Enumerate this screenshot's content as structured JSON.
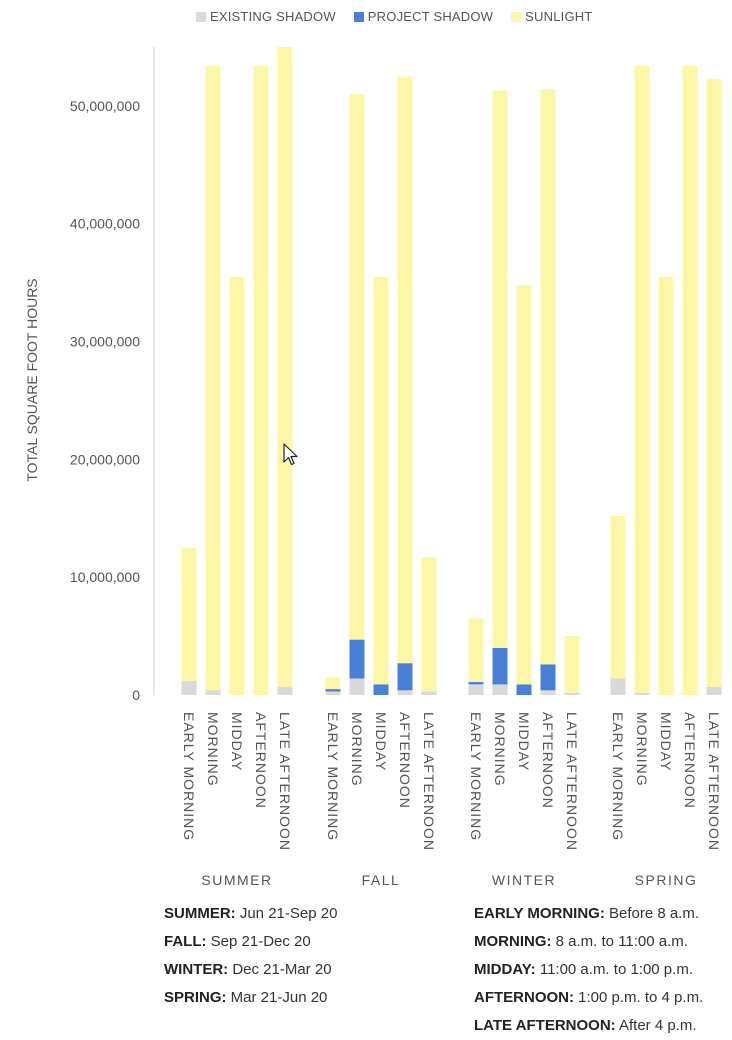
{
  "legend": [
    {
      "name": "EXISTING SHADOW",
      "color": "#d9d9d9"
    },
    {
      "name": "PROJECT SHADOW",
      "color": "#4a7fd8"
    },
    {
      "name": "SUNLIGHT",
      "color": "#fbf7a6"
    }
  ],
  "chart_data": {
    "type": "bar",
    "stacked": true,
    "ylabel": "TOTAL SQUARE FOOT HOURS",
    "ylim": [
      0,
      55000000
    ],
    "yticks": [
      "0",
      "10,000,000",
      "20,000,000",
      "30,000,000",
      "40,000,000",
      "50,000,000"
    ],
    "ytick_values": [
      0,
      10000000,
      20000000,
      30000000,
      40000000,
      50000000
    ],
    "grid": false,
    "legend_position": "top",
    "groups": [
      "SUMMER",
      "FALL",
      "WINTER",
      "SPRING"
    ],
    "categories": [
      "EARLY MORNING",
      "MORNING",
      "MIDDAY",
      "AFTERNOON",
      "LATE AFTERNOON"
    ],
    "series": [
      {
        "name": "EXISTING SHADOW",
        "color": "#d9d9d9",
        "values": [
          [
            1200000,
            400000,
            0,
            0,
            700000
          ],
          [
            300000,
            1400000,
            0,
            400000,
            300000
          ],
          [
            900000,
            900000,
            0,
            400000,
            200000
          ],
          [
            1400000,
            200000,
            0,
            0,
            700000
          ]
        ]
      },
      {
        "name": "PROJECT SHADOW",
        "color": "#4a7fd8",
        "values": [
          [
            0,
            0,
            0,
            0,
            0
          ],
          [
            200000,
            3300000,
            900000,
            2300000,
            0
          ],
          [
            200000,
            3100000,
            900000,
            2200000,
            0
          ],
          [
            0,
            0,
            0,
            0,
            0
          ]
        ]
      },
      {
        "name": "SUNLIGHT",
        "color": "#fbf7a6",
        "values": [
          [
            11300000,
            53000000,
            35500000,
            53400000,
            54300000
          ],
          [
            1000000,
            46300000,
            34600000,
            49800000,
            11400000
          ],
          [
            5400000,
            47300000,
            33900000,
            48800000,
            4800000
          ],
          [
            13800000,
            53200000,
            35500000,
            53400000,
            51600000
          ]
        ]
      }
    ]
  },
  "notes_left": [
    {
      "key": "SUMMER:",
      "text": " Jun 21-Sep 20"
    },
    {
      "key": "FALL:",
      "text": " Sep 21-Dec 20"
    },
    {
      "key": "WINTER:",
      "text": " Dec 21-Mar 20"
    },
    {
      "key": "SPRING:",
      "text": " Mar 21-Jun 20"
    }
  ],
  "notes_right": [
    {
      "key": "EARLY MORNING:",
      "text": " Before 8 a.m."
    },
    {
      "key": "MORNING:",
      "text": " 8 a.m. to 11:00 a.m."
    },
    {
      "key": "MIDDAY:",
      "text": " 11:00 a.m. to 1:00 p.m."
    },
    {
      "key": "AFTERNOON:",
      "text": " 1:00 p.m. to 4 p.m."
    },
    {
      "key": "LATE AFTERNOON:",
      "text": " After 4 p.m."
    }
  ]
}
